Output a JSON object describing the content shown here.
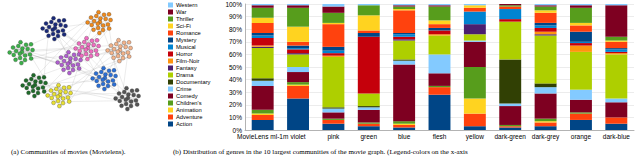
{
  "chart_data": [
    {
      "type": "network",
      "title": "(a) Communities of movies (Movielens).",
      "colors": [
        "#b05fd0",
        "#f06cc0",
        "#3cb04a",
        "#2b6fd6",
        "#f3b38a",
        "#e8e030",
        "#1f6b2a",
        "#555555",
        "#f08a1c",
        "#1a2a7a"
      ]
    },
    {
      "type": "bar",
      "title": "(b) Distribution of genres in the 10 largest communities of the movie graph. (Legend-colors on the x-axis",
      "stacked": true,
      "grid": true,
      "legend": "left",
      "categories": [
        "MovieLens ml-1m",
        "violet",
        "pink",
        "green",
        "blue",
        "flesh",
        "yellow",
        "dark-green",
        "dark-grey",
        "orange",
        "dark-blue"
      ],
      "ylim": [
        0,
        100
      ],
      "yticks": [
        {
          "value": 0,
          "label": "0%"
        },
        {
          "value": 10,
          "label": "10%"
        },
        {
          "value": 20,
          "label": "20%"
        },
        {
          "value": 30,
          "label": "30%"
        },
        {
          "value": 40,
          "label": "40%"
        },
        {
          "value": 50,
          "label": "50%"
        },
        {
          "value": 60,
          "label": "60%"
        },
        {
          "value": 70,
          "label": "70%"
        },
        {
          "value": 80,
          "label": "80%"
        },
        {
          "value": 90,
          "label": "90%"
        },
        {
          "value": 100,
          "label": "100%"
        }
      ],
      "series": [
        {
          "name": "Action",
          "color": "#004586",
          "values": [
            8,
            25,
            5,
            3,
            2,
            28,
            3,
            2,
            3,
            8,
            5
          ]
        },
        {
          "name": "Adventure",
          "color": "#ff420e",
          "values": [
            4,
            10,
            3,
            2,
            2,
            6,
            10,
            1,
            3,
            5,
            5
          ]
        },
        {
          "name": "Animation",
          "color": "#ffd320",
          "values": [
            1,
            1,
            0,
            0,
            1,
            0,
            12,
            0,
            1,
            0,
            0
          ]
        },
        {
          "name": "Children's",
          "color": "#579d1c",
          "values": [
            3,
            2,
            1,
            1,
            2,
            1,
            25,
            1,
            2,
            1,
            0
          ]
        },
        {
          "name": "Comedy",
          "color": "#7e0021",
          "values": [
            19,
            8,
            5,
            10,
            45,
            10,
            20,
            15,
            20,
            10,
            12
          ]
        },
        {
          "name": "Crime",
          "color": "#83caff",
          "values": [
            4,
            4,
            3,
            2,
            3,
            15,
            1,
            2,
            5,
            8,
            3
          ]
        },
        {
          "name": "Documentary",
          "color": "#314004",
          "values": [
            2,
            0,
            1,
            1,
            1,
            0,
            0,
            35,
            3,
            0,
            0
          ]
        },
        {
          "name": "Drama",
          "color": "#aecf00",
          "values": [
            24,
            10,
            40,
            10,
            15,
            15,
            5,
            30,
            38,
            30,
            35
          ]
        },
        {
          "name": "Fantasy",
          "color": "#4b1f6f",
          "values": [
            1,
            1,
            0,
            0,
            1,
            0,
            8,
            0,
            1,
            0,
            0
          ]
        },
        {
          "name": "Film-Noir",
          "color": "#ff950e",
          "values": [
            1,
            0,
            1,
            0,
            0,
            1,
            0,
            0,
            2,
            5,
            1
          ]
        },
        {
          "name": "Horror",
          "color": "#c5000b",
          "values": [
            6,
            3,
            2,
            45,
            2,
            3,
            0,
            2,
            3,
            2,
            1
          ]
        },
        {
          "name": "Musical",
          "color": "#0084d1",
          "values": [
            2,
            1,
            2,
            0,
            2,
            0,
            10,
            8,
            2,
            1,
            2
          ]
        },
        {
          "name": "Mystery",
          "color": "#004586",
          "values": [
            2,
            2,
            3,
            3,
            1,
            2,
            0,
            0,
            2,
            8,
            1
          ]
        },
        {
          "name": "Romance",
          "color": "#ff420e",
          "values": [
            8,
            3,
            18,
            2,
            18,
            3,
            3,
            2,
            8,
            5,
            5
          ]
        },
        {
          "name": "Sci-Fi",
          "color": "#ffd320",
          "values": [
            4,
            12,
            1,
            12,
            1,
            3,
            2,
            0,
            2,
            2,
            1
          ]
        },
        {
          "name": "Thriller",
          "color": "#579d1c",
          "values": [
            8,
            15,
            8,
            8,
            2,
            11,
            0,
            1,
            3,
            12,
            3
          ]
        },
        {
          "name": "War",
          "color": "#7e0021",
          "values": [
            2,
            2,
            5,
            0,
            1,
            1,
            0,
            1,
            1,
            2,
            25
          ]
        },
        {
          "name": "Western",
          "color": "#83caff",
          "values": [
            1,
            1,
            2,
            1,
            1,
            1,
            1,
            0,
            1,
            1,
            1
          ]
        }
      ]
    }
  ]
}
